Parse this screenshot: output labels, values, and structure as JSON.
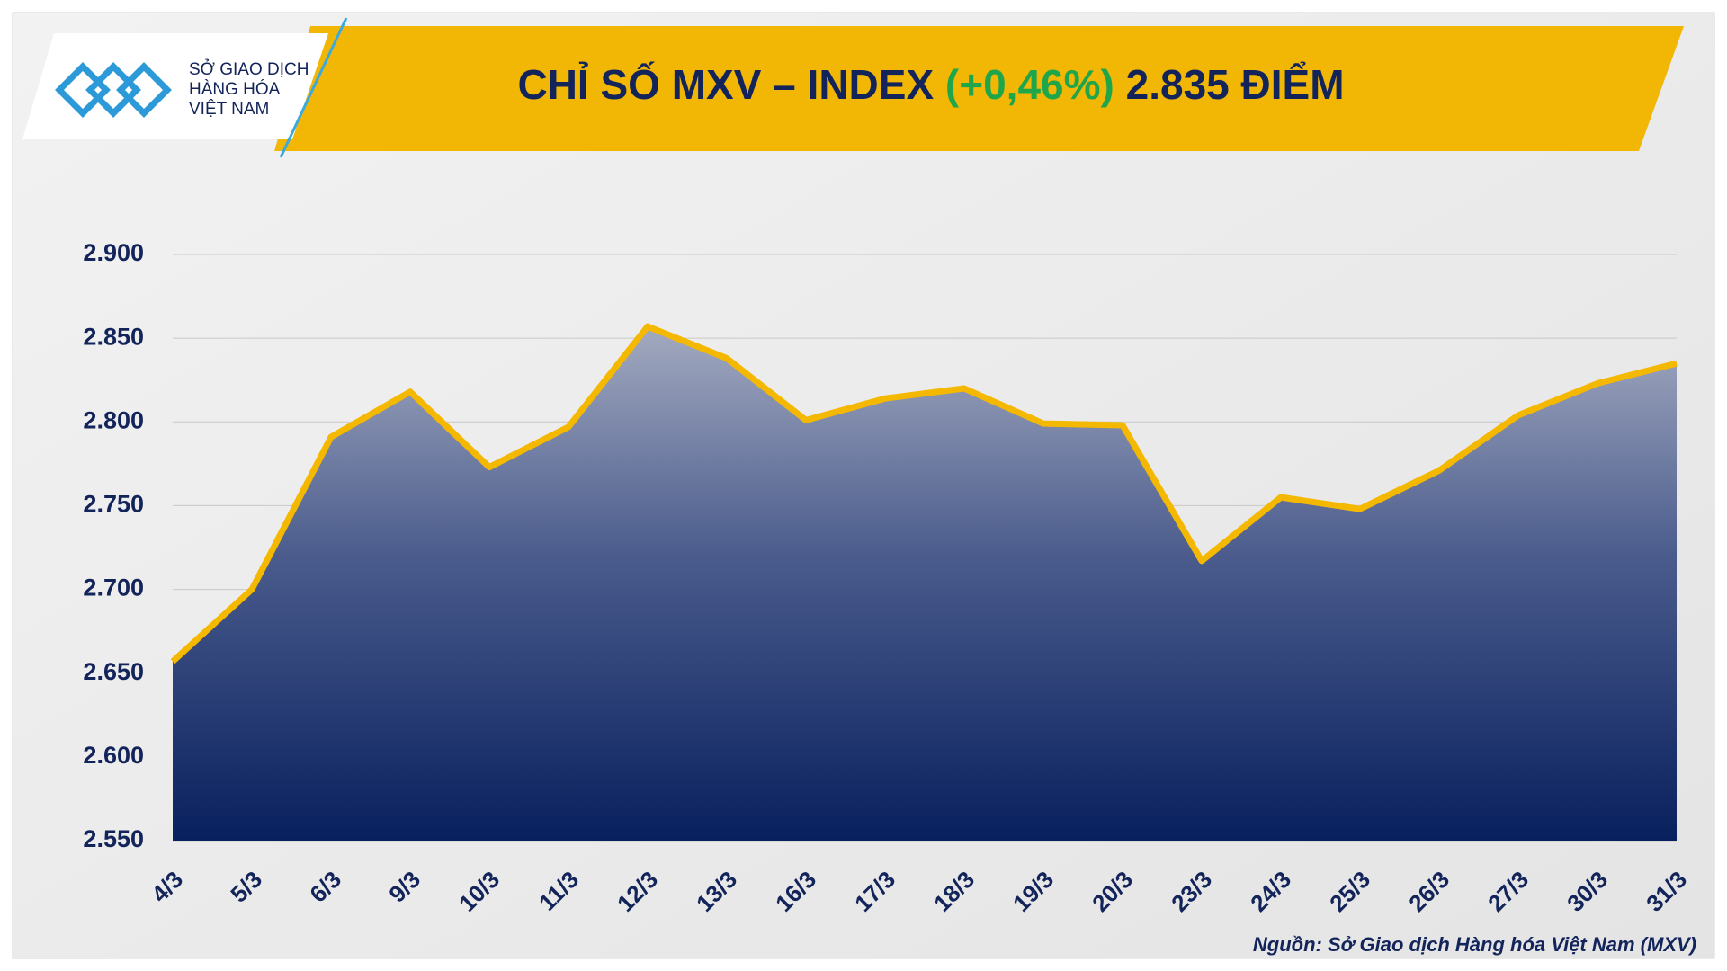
{
  "logo": {
    "lines": [
      "SỞ GIAO DỊCH",
      "HÀNG HÓA",
      "VIỆT NAM"
    ]
  },
  "chart_data": {
    "type": "area",
    "title": "CHỈ SỐ MXV – INDEX",
    "title_change": "(+0,46%)",
    "title_level": "2.835 ĐIỂM",
    "categories": [
      "4/3",
      "5/3",
      "6/3",
      "9/3",
      "10/3",
      "11/3",
      "12/3",
      "13/3",
      "16/3",
      "17/3",
      "18/3",
      "19/3",
      "20/3",
      "23/3",
      "24/3",
      "25/3",
      "26/3",
      "27/3",
      "30/3",
      "31/3"
    ],
    "values": [
      2657,
      2700,
      2791,
      2818,
      2773,
      2797,
      2857,
      2838,
      2801,
      2814,
      2820,
      2799,
      2798,
      2717,
      2755,
      2748,
      2771,
      2804,
      2823,
      2835
    ],
    "color": "#f5b800",
    "ylim": [
      2550,
      2900
    ],
    "yticks": [
      {
        "value": 2550,
        "label": "2.550"
      },
      {
        "value": 2600,
        "label": "2.600"
      },
      {
        "value": 2650,
        "label": "2.650"
      },
      {
        "value": 2700,
        "label": "2.700"
      },
      {
        "value": 2750,
        "label": "2.750"
      },
      {
        "value": 2800,
        "label": "2.800"
      },
      {
        "value": 2850,
        "label": "2.850"
      },
      {
        "value": 2900,
        "label": "2.900"
      }
    ],
    "grid": true,
    "source": "Nguồn: Sở Giao dịch Hàng hóa Việt Nam (MXV)"
  }
}
